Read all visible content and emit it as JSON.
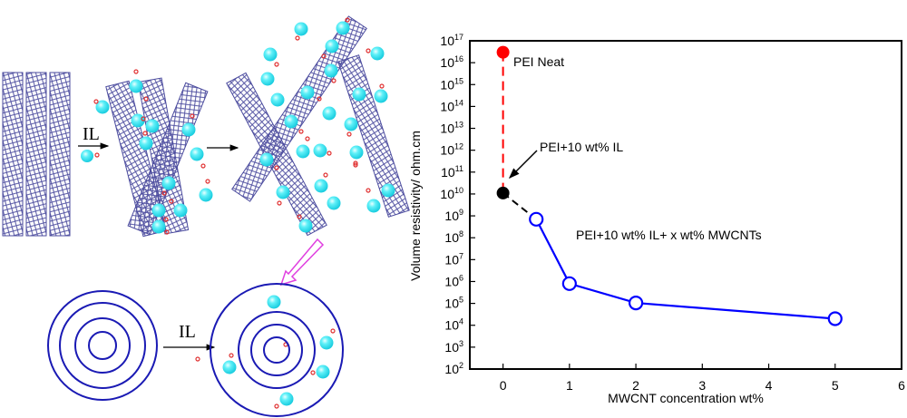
{
  "diagram": {
    "arrow_label_top": "IL",
    "arrow_label_bottom": "IL",
    "colors": {
      "tube": "#4b4b9e",
      "ion_large": "#35e0ee",
      "ion_small": "#e03030",
      "ring": "#1a1ab4",
      "highlight_arrow": "#e040e0"
    }
  },
  "chart_data": {
    "type": "scatter",
    "title": "",
    "xlabel": "MWCNT concentration wt%",
    "ylabel": "Volume resistivity/ ohm.cm",
    "xlim": [
      -0.5,
      6
    ],
    "ylim_log10": [
      2,
      17
    ],
    "yscale": "log",
    "x_ticks": [
      0,
      1,
      2,
      3,
      4,
      5,
      6
    ],
    "y_tick_exponents": [
      2,
      3,
      4,
      5,
      6,
      7,
      8,
      9,
      10,
      11,
      12,
      13,
      14,
      15,
      16,
      17
    ],
    "y_tick_base": "10",
    "grid": false,
    "series": [
      {
        "name": "PEI Neat",
        "color": "#ff0000",
        "marker": "filled-circle",
        "x": [
          0
        ],
        "y": [
          3e+16
        ]
      },
      {
        "name": "PEI+10 wt% IL",
        "color": "#000000",
        "marker": "filled-circle",
        "x": [
          0
        ],
        "y": [
          11000000000.0
        ]
      },
      {
        "name": "PEI+10 wt% IL+ x wt% MWCNTs",
        "color": "#0000ff",
        "marker": "open-circle",
        "x": [
          0.5,
          1,
          2,
          5
        ],
        "y": [
          700000000.0,
          800000.0,
          105000.0,
          20000.0
        ]
      }
    ],
    "annotations": [
      "PEI Neat",
      "PEI+10 wt% IL",
      "PEI+10 wt% IL+ x wt% MWCNTs"
    ]
  }
}
